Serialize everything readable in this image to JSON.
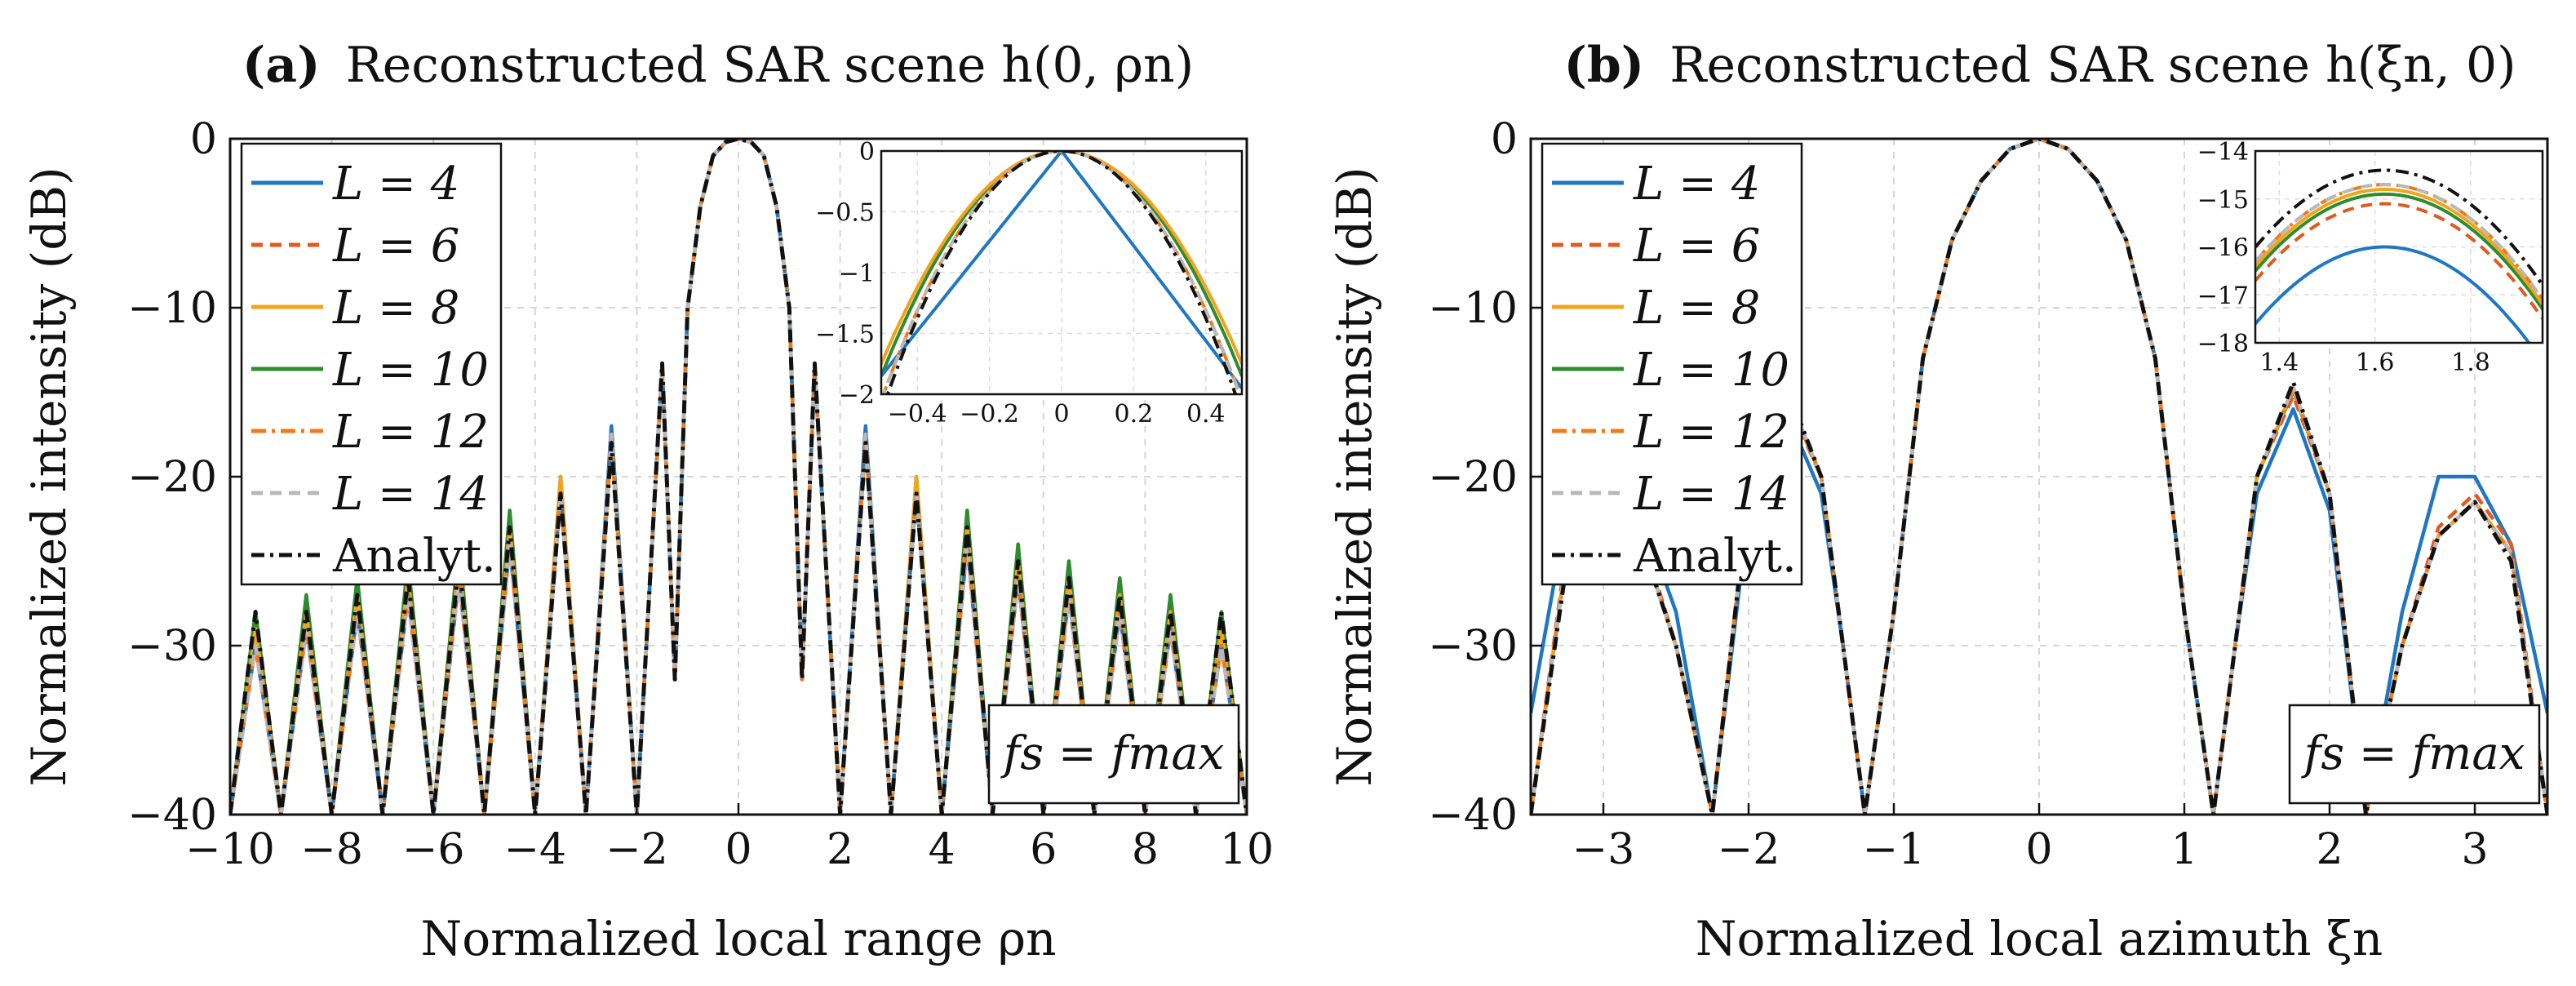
{
  "colors": {
    "L4": "#1f77c4",
    "L6": "#e05a1e",
    "L8": "#f2a41c",
    "L10": "#2e8b2e",
    "L12": "#f07a18",
    "L14": "#b8b8b8",
    "analytic": "#111111"
  },
  "panels": [
    {
      "title_bold": "(a)",
      "title_text": "Reconstructed SAR scene h(0, ρn)",
      "xlabel": "Normalized local range ρn",
      "ylabel": "Normalized intensity (dB)",
      "xlim": [
        -10,
        10
      ],
      "ylim": [
        -40,
        0
      ],
      "xticks": [
        "−10",
        "−8",
        "−6",
        "−4",
        "−2",
        "0",
        "2",
        "4",
        "6",
        "8",
        "10"
      ],
      "yticks": [
        "0",
        "−10",
        "−20",
        "−30",
        "−40"
      ],
      "annotation": "fs = fmax",
      "legend": [
        "L = 4",
        "L = 6",
        "L = 8",
        "L = 10",
        "L = 12",
        "L = 14",
        "Analyt."
      ],
      "inset": {
        "xlim": [
          -0.5,
          0.5
        ],
        "ylim": [
          -2,
          0
        ],
        "xticks": [
          "−0.4",
          "−0.2",
          "0",
          "0.2",
          "0.4"
        ],
        "yticks": [
          "0",
          "−0.5",
          "−1",
          "−1.5",
          "−2"
        ]
      }
    },
    {
      "title_bold": "(b)",
      "title_text": "Reconstructed SAR scene h(ξn, 0)",
      "xlabel": "Normalized local azimuth ξn",
      "ylabel": "Normalized intensity (dB)",
      "xlim": [
        -3.5,
        3.5
      ],
      "ylim": [
        -40,
        0
      ],
      "xticks": [
        "−3",
        "−2",
        "−1",
        "0",
        "1",
        "2",
        "3"
      ],
      "yticks": [
        "0",
        "−10",
        "−20",
        "−30",
        "−40"
      ],
      "annotation": "fs = fmax",
      "legend": [
        "L = 4",
        "L = 6",
        "L = 8",
        "L = 10",
        "L = 12",
        "L = 14",
        "Analyt."
      ],
      "inset": {
        "xlim": [
          1.35,
          1.95
        ],
        "ylim": [
          -18,
          -14
        ],
        "xticks": [
          "1.4",
          "1.6",
          "1.8"
        ],
        "yticks": [
          "−14",
          "−15",
          "−16",
          "−17",
          "−18"
        ]
      }
    }
  ],
  "chart_data": [
    {
      "type": "line",
      "title": "(a) Reconstructed SAR scene h(0, ρn)",
      "xlabel": "Normalized local range ρn",
      "ylabel": "Normalized intensity (dB)",
      "xlim": [
        -10,
        10
      ],
      "ylim": [
        -40,
        0
      ],
      "grid": true,
      "legend_position": "top-left",
      "x": [
        -10,
        -9.5,
        -9,
        -8.5,
        -8,
        -7.5,
        -7,
        -6.5,
        -6,
        -5.5,
        -5,
        -4.5,
        -4,
        -3.5,
        -3,
        -2.5,
        -2,
        -1.5,
        -1.25,
        -1,
        -0.75,
        -0.5,
        -0.25,
        0,
        0.25,
        0.5,
        0.75,
        1,
        1.25,
        1.5,
        2,
        2.5,
        3,
        3.5,
        4,
        4.5,
        5,
        5.5,
        6,
        6.5,
        7,
        7.5,
        8,
        8.5,
        9,
        9.5,
        10
      ],
      "series": [
        {
          "name": "L = 4",
          "values": [
            -40,
            -30,
            -40,
            -29,
            -40,
            -28,
            -40,
            -27,
            -40,
            -26,
            -40,
            -24,
            -40,
            -21,
            -40,
            -17,
            -40,
            -13.5,
            -32,
            -10,
            -4,
            -1,
            -0.2,
            0,
            -0.2,
            -1,
            -4,
            -10,
            -32,
            -13.5,
            -40,
            -17,
            -40,
            -21,
            -40,
            -24,
            -40,
            -26,
            -40,
            -27,
            -40,
            -28,
            -40,
            -29,
            -40,
            -30,
            -40
          ]
        },
        {
          "name": "L = 6",
          "values": [
            -40,
            -30,
            -40,
            -29,
            -40,
            -28,
            -40,
            -27,
            -40,
            -26,
            -40,
            -24,
            -40,
            -21,
            -40,
            -17.5,
            -40,
            -13.5,
            -32,
            -10,
            -4,
            -1,
            -0.2,
            0,
            -0.2,
            -1,
            -4,
            -10,
            -32,
            -13.5,
            -40,
            -17.5,
            -40,
            -21,
            -40,
            -24,
            -40,
            -26,
            -40,
            -27,
            -40,
            -28,
            -40,
            -29,
            -40,
            -30,
            -40
          ]
        },
        {
          "name": "L = 8",
          "values": [
            -40,
            -29,
            -40,
            -28,
            -40,
            -27,
            -40,
            -26,
            -40,
            -25,
            -40,
            -23,
            -40,
            -20,
            -40,
            -18,
            -40,
            -13.5,
            -32,
            -10,
            -4,
            -1,
            -0.2,
            0,
            -0.2,
            -1,
            -4,
            -10,
            -32,
            -13.5,
            -40,
            -18,
            -40,
            -20,
            -40,
            -23,
            -40,
            -25,
            -40,
            -26,
            -40,
            -27,
            -40,
            -28,
            -40,
            -29,
            -40
          ]
        },
        {
          "name": "L = 10",
          "values": [
            -40,
            -28,
            -40,
            -27,
            -40,
            -26,
            -40,
            -25,
            -40,
            -24,
            -40,
            -22,
            -40,
            -20,
            -40,
            -17.5,
            -40,
            -13.5,
            -32,
            -10,
            -4,
            -1,
            -0.2,
            0,
            -0.2,
            -1,
            -4,
            -10,
            -32,
            -13.5,
            -40,
            -17.5,
            -40,
            -20,
            -40,
            -22,
            -40,
            -24,
            -40,
            -25,
            -40,
            -26,
            -40,
            -27,
            -40,
            -28,
            -40
          ]
        },
        {
          "name": "L = 12",
          "values": [
            -40,
            -30,
            -40,
            -29,
            -40,
            -28,
            -40,
            -27,
            -40,
            -26,
            -40,
            -24,
            -40,
            -21,
            -40,
            -17.5,
            -40,
            -13.5,
            -32,
            -10,
            -4,
            -1,
            -0.2,
            0,
            -0.2,
            -1,
            -4,
            -10,
            -32,
            -13.5,
            -40,
            -17.5,
            -40,
            -21,
            -40,
            -24,
            -40,
            -26,
            -40,
            -27,
            -40,
            -28,
            -40,
            -29,
            -40,
            -30,
            -40
          ]
        },
        {
          "name": "L = 14",
          "values": [
            -40,
            -30,
            -40,
            -29,
            -40,
            -28,
            -40,
            -27,
            -40,
            -26,
            -40,
            -24,
            -40,
            -21,
            -40,
            -17.5,
            -40,
            -13.5,
            -32,
            -10,
            -4,
            -1,
            -0.2,
            0,
            -0.2,
            -1,
            -4,
            -10,
            -32,
            -13.5,
            -40,
            -17.5,
            -40,
            -21,
            -40,
            -24,
            -40,
            -26,
            -40,
            -27,
            -40,
            -28,
            -40,
            -29,
            -40,
            -30,
            -40
          ]
        },
        {
          "name": "Analyt.",
          "values": [
            -40,
            -28,
            -40,
            -28,
            -40,
            -27,
            -40,
            -26,
            -40,
            -25,
            -40,
            -23,
            -40,
            -21,
            -40,
            -18,
            -40,
            -13.3,
            -32,
            -10,
            -4,
            -1,
            -0.2,
            0,
            -0.2,
            -1,
            -4,
            -10,
            -32,
            -13.3,
            -40,
            -18,
            -40,
            -21,
            -40,
            -23,
            -40,
            -25,
            -40,
            -26,
            -40,
            -27,
            -40,
            -28,
            -40,
            -28,
            -40
          ]
        }
      ]
    },
    {
      "type": "line",
      "title": "(b) Reconstructed SAR scene h(ξn, 0)",
      "xlabel": "Normalized local azimuth ξn",
      "ylabel": "Normalized intensity (dB)",
      "xlim": [
        -3.5,
        3.5
      ],
      "ylim": [
        -40,
        0
      ],
      "grid": true,
      "legend_position": "top-left",
      "x": [
        -3.5,
        -3.25,
        -3,
        -2.75,
        -2.5,
        -2.25,
        -2,
        -1.75,
        -1.5,
        -1.35,
        -1.2,
        -1,
        -0.8,
        -0.6,
        -0.4,
        -0.2,
        0,
        0.2,
        0.4,
        0.6,
        0.8,
        1,
        1.2,
        1.35,
        1.5,
        1.75,
        2,
        2.25,
        2.5,
        2.75,
        3,
        3.25,
        3.5
      ],
      "series": [
        {
          "name": "L = 4",
          "values": [
            -34,
            -22,
            -20,
            -22,
            -28,
            -40,
            -22,
            -16,
            -21,
            -30,
            -40,
            -28,
            -13,
            -6,
            -2.5,
            -0.6,
            0,
            -0.6,
            -2.5,
            -6,
            -13,
            -28,
            -40,
            -30,
            -21,
            -16,
            -22,
            -40,
            -28,
            -20,
            -20,
            -24,
            -34
          ]
        },
        {
          "name": "L = 6",
          "values": [
            -40,
            -24,
            -21,
            -23,
            -30,
            -40,
            -21,
            -15.2,
            -20,
            -30,
            -40,
            -28,
            -13,
            -6,
            -2.5,
            -0.6,
            0,
            -0.6,
            -2.5,
            -6,
            -13,
            -28,
            -40,
            -30,
            -20,
            -15.2,
            -21,
            -40,
            -30,
            -23,
            -21,
            -24,
            -40
          ]
        },
        {
          "name": "L = 8",
          "values": [
            -40,
            -24.5,
            -21.5,
            -23.5,
            -30,
            -40,
            -21,
            -14.8,
            -20,
            -30,
            -40,
            -28,
            -13,
            -6,
            -2.5,
            -0.6,
            0,
            -0.6,
            -2.5,
            -6,
            -13,
            -28,
            -40,
            -30,
            -20,
            -14.8,
            -21,
            -40,
            -30,
            -23.5,
            -21.5,
            -24.5,
            -40
          ]
        },
        {
          "name": "L = 10",
          "values": [
            -40,
            -24.5,
            -21.5,
            -23.5,
            -30,
            -40,
            -21,
            -14.9,
            -20,
            -30,
            -40,
            -28,
            -13,
            -6,
            -2.5,
            -0.6,
            0,
            -0.6,
            -2.5,
            -6,
            -13,
            -28,
            -40,
            -30,
            -20,
            -14.9,
            -21,
            -40,
            -30,
            -23.5,
            -21.5,
            -24.5,
            -40
          ]
        },
        {
          "name": "L = 12",
          "values": [
            -40,
            -24.5,
            -21.5,
            -23.5,
            -30,
            -40,
            -21,
            -14.7,
            -20,
            -30,
            -40,
            -28,
            -13,
            -6,
            -2.5,
            -0.6,
            0,
            -0.6,
            -2.5,
            -6,
            -13,
            -28,
            -40,
            -30,
            -20,
            -14.7,
            -21,
            -40,
            -30,
            -23.5,
            -21.5,
            -24.5,
            -40
          ]
        },
        {
          "name": "L = 14",
          "values": [
            -40,
            -24.5,
            -21.5,
            -23.5,
            -30,
            -40,
            -21,
            -14.7,
            -20,
            -30,
            -40,
            -28,
            -13,
            -6,
            -2.5,
            -0.6,
            0,
            -0.6,
            -2.5,
            -6,
            -13,
            -28,
            -40,
            -30,
            -20,
            -14.7,
            -21,
            -40,
            -30,
            -23.5,
            -21.5,
            -24.5,
            -40
          ]
        },
        {
          "name": "Analyt.",
          "values": [
            -40,
            -25,
            -21.5,
            -23.5,
            -30,
            -40,
            -21,
            -14.4,
            -20,
            -30,
            -40,
            -28,
            -13,
            -6,
            -2.5,
            -0.6,
            0,
            -0.6,
            -2.5,
            -6,
            -13,
            -28,
            -40,
            -30,
            -20,
            -14.4,
            -21,
            -40,
            -30,
            -23.5,
            -21.5,
            -25,
            -40
          ]
        }
      ]
    }
  ]
}
